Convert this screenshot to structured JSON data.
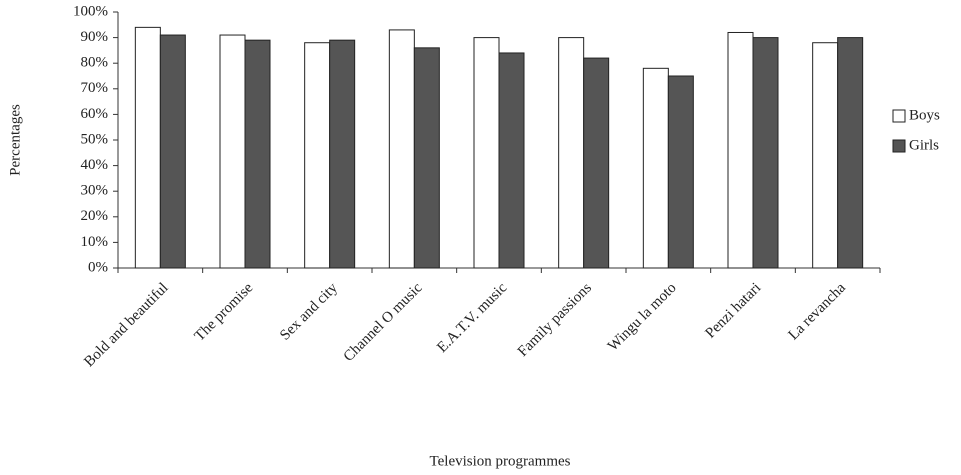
{
  "chart_data": {
    "type": "bar",
    "x_label": "Television programmes",
    "y_label": "Percentages",
    "categories": [
      "Bold and beautiful",
      "The promise",
      "Sex and city",
      "Channel O music",
      "E.A.T.V. music",
      "Family passions",
      "Wingu la moto",
      "Penzi hatari",
      "La revancha"
    ],
    "series": [
      {
        "name": "Boys",
        "color": "#ffffff",
        "values": [
          94,
          91,
          88,
          93,
          90,
          90,
          78,
          92,
          88
        ]
      },
      {
        "name": "Girls",
        "color": "#555555",
        "values": [
          91,
          89,
          89,
          86,
          84,
          82,
          75,
          90,
          90
        ]
      }
    ],
    "ylim": [
      0,
      100
    ],
    "yticks": [
      {
        "value": 0,
        "label": "0%"
      },
      {
        "value": 10,
        "label": "10%"
      },
      {
        "value": 20,
        "label": "20%"
      },
      {
        "value": 30,
        "label": "30%"
      },
      {
        "value": 40,
        "label": "40%"
      },
      {
        "value": 50,
        "label": "50%"
      },
      {
        "value": 60,
        "label": "60%"
      },
      {
        "value": 70,
        "label": "70%"
      },
      {
        "value": 80,
        "label": "80%"
      },
      {
        "value": 90,
        "label": "90%"
      },
      {
        "value": 100,
        "label": "100%"
      }
    ],
    "grid": false,
    "legend": "right"
  }
}
